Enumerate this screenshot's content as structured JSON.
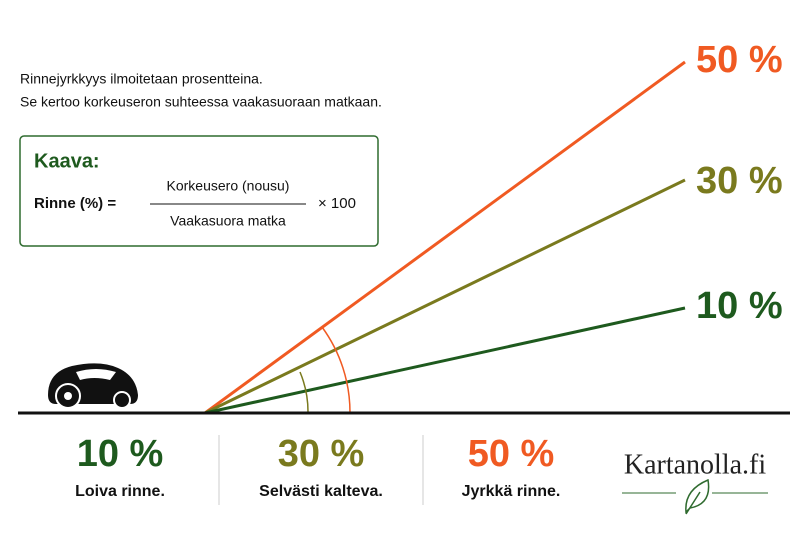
{
  "intro": {
    "line1": "Rinnejyrkkyys ilmoitetaan prosentteina.",
    "line2": "Se kertoo korkeuseron suhteessa vaakasuoraan matkaan."
  },
  "formula": {
    "title": "Kaava:",
    "lhs": "Rinne (%) =",
    "numerator": "Korkeusero (nousu)",
    "denominator": "Vaakasuora matka",
    "multiplier": "× 100"
  },
  "slope_labels": [
    "50 %",
    "30 %",
    "10 %"
  ],
  "legend": [
    {
      "value": "10 %",
      "description": "Loiva rinne."
    },
    {
      "value": "30 %",
      "description": "Selvästi kalteva."
    },
    {
      "value": "50 %",
      "description": "Jyrkkä rinne."
    }
  ],
  "logo": "Kartanolla.fi"
}
